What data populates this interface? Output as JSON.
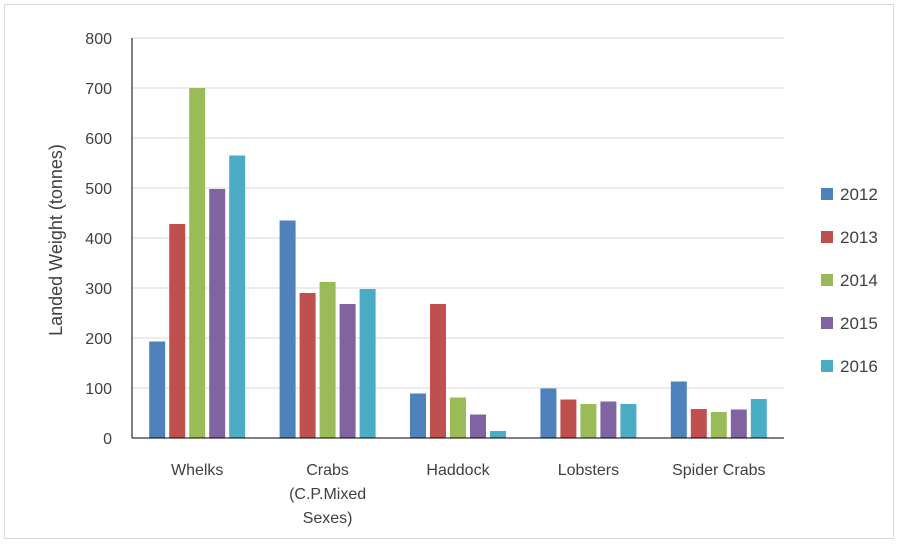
{
  "chart_data": {
    "type": "bar",
    "title": "",
    "xlabel": "",
    "ylabel": "Landed Weight (tonnes)",
    "ylim": [
      0,
      800
    ],
    "yticks": [
      "0",
      "100",
      "200",
      "300",
      "400",
      "500",
      "600",
      "700",
      "800"
    ],
    "grid": true,
    "legend_position": "right",
    "categories": [
      [
        "Whelks"
      ],
      [
        "Crabs",
        "(C.P.Mixed",
        "Sexes)"
      ],
      [
        "Haddock"
      ],
      [
        "Lobsters"
      ],
      [
        "Spider Crabs"
      ]
    ],
    "series": [
      {
        "name": "2012",
        "color": "#4f81bd",
        "values": [
          193,
          435,
          89,
          99,
          113
        ]
      },
      {
        "name": "2013",
        "color": "#c0504d",
        "values": [
          428,
          290,
          268,
          77,
          58
        ]
      },
      {
        "name": "2014",
        "color": "#9bbb59",
        "values": [
          700,
          312,
          81,
          68,
          52
        ]
      },
      {
        "name": "2015",
        "color": "#8064a2",
        "values": [
          498,
          268,
          47,
          73,
          57
        ]
      },
      {
        "name": "2016",
        "color": "#4bacc6",
        "values": [
          565,
          298,
          14,
          68,
          78
        ]
      }
    ]
  }
}
